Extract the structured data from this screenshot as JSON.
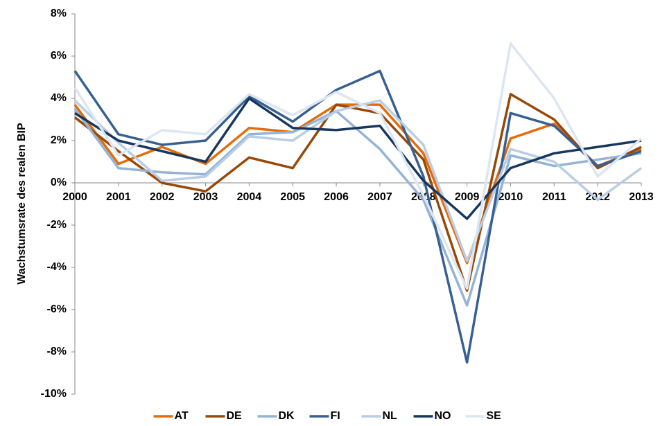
{
  "chart_data": {
    "type": "line",
    "y_label": "Wachstumsrate des realen BIP",
    "categories": [
      "2000",
      "2001",
      "2002",
      "2003",
      "2004",
      "2005",
      "2006",
      "2007",
      "2008",
      "2009",
      "2010",
      "2011",
      "2012",
      "2013"
    ],
    "series": [
      {
        "name": "AT",
        "color": "#e46c0a",
        "values": [
          3.7,
          0.9,
          1.7,
          0.9,
          2.6,
          2.4,
          3.7,
          3.7,
          1.4,
          -3.8,
          2.1,
          2.8,
          0.8,
          1.6
        ]
      },
      {
        "name": "DE",
        "color": "#984807",
        "values": [
          3.1,
          1.5,
          0.0,
          -0.4,
          1.2,
          0.7,
          3.7,
          3.3,
          1.1,
          -5.1,
          4.2,
          3.0,
          0.7,
          1.7
        ]
      },
      {
        "name": "DK",
        "color": "#95b3d7",
        "values": [
          3.5,
          0.7,
          0.5,
          0.4,
          2.3,
          2.4,
          3.4,
          1.6,
          -0.8,
          -5.8,
          1.3,
          0.8,
          1.1,
          1.4
        ]
      },
      {
        "name": "FI",
        "color": "#376092",
        "values": [
          5.3,
          2.3,
          1.8,
          2.0,
          4.1,
          2.9,
          4.4,
          5.3,
          0.3,
          -8.5,
          3.3,
          2.7,
          0.8,
          1.5
        ]
      },
      {
        "name": "NL",
        "color": "#b9cde5",
        "values": [
          3.9,
          1.9,
          0.1,
          0.3,
          2.2,
          2.0,
          3.4,
          3.9,
          1.8,
          -3.7,
          1.6,
          1.0,
          -0.8,
          0.7
        ]
      },
      {
        "name": "NO",
        "color": "#17375e",
        "values": [
          3.3,
          2.0,
          1.5,
          1.0,
          4.0,
          2.6,
          2.5,
          2.7,
          0.1,
          -1.7,
          0.7,
          1.4,
          1.7,
          2.0
        ]
      },
      {
        "name": "SE",
        "color": "#dce6f2",
        "values": [
          4.5,
          1.3,
          2.5,
          2.3,
          4.2,
          3.2,
          4.3,
          3.3,
          -0.6,
          -5.0,
          6.6,
          4.0,
          0.3,
          2.1
        ]
      }
    ],
    "ylim": [
      -10,
      8
    ],
    "yticks": [
      {
        "value": -10,
        "label": "-10%"
      },
      {
        "value": -8,
        "label": "-8%"
      },
      {
        "value": -6,
        "label": "-6%"
      },
      {
        "value": -4,
        "label": "-4%"
      },
      {
        "value": -2,
        "label": "-2%"
      },
      {
        "value": 0,
        "label": "0%"
      },
      {
        "value": 2,
        "label": "2%"
      },
      {
        "value": 4,
        "label": "4%"
      },
      {
        "value": 6,
        "label": "6%"
      },
      {
        "value": 8,
        "label": "8%"
      }
    ],
    "grid": false,
    "legend": "bottom"
  }
}
